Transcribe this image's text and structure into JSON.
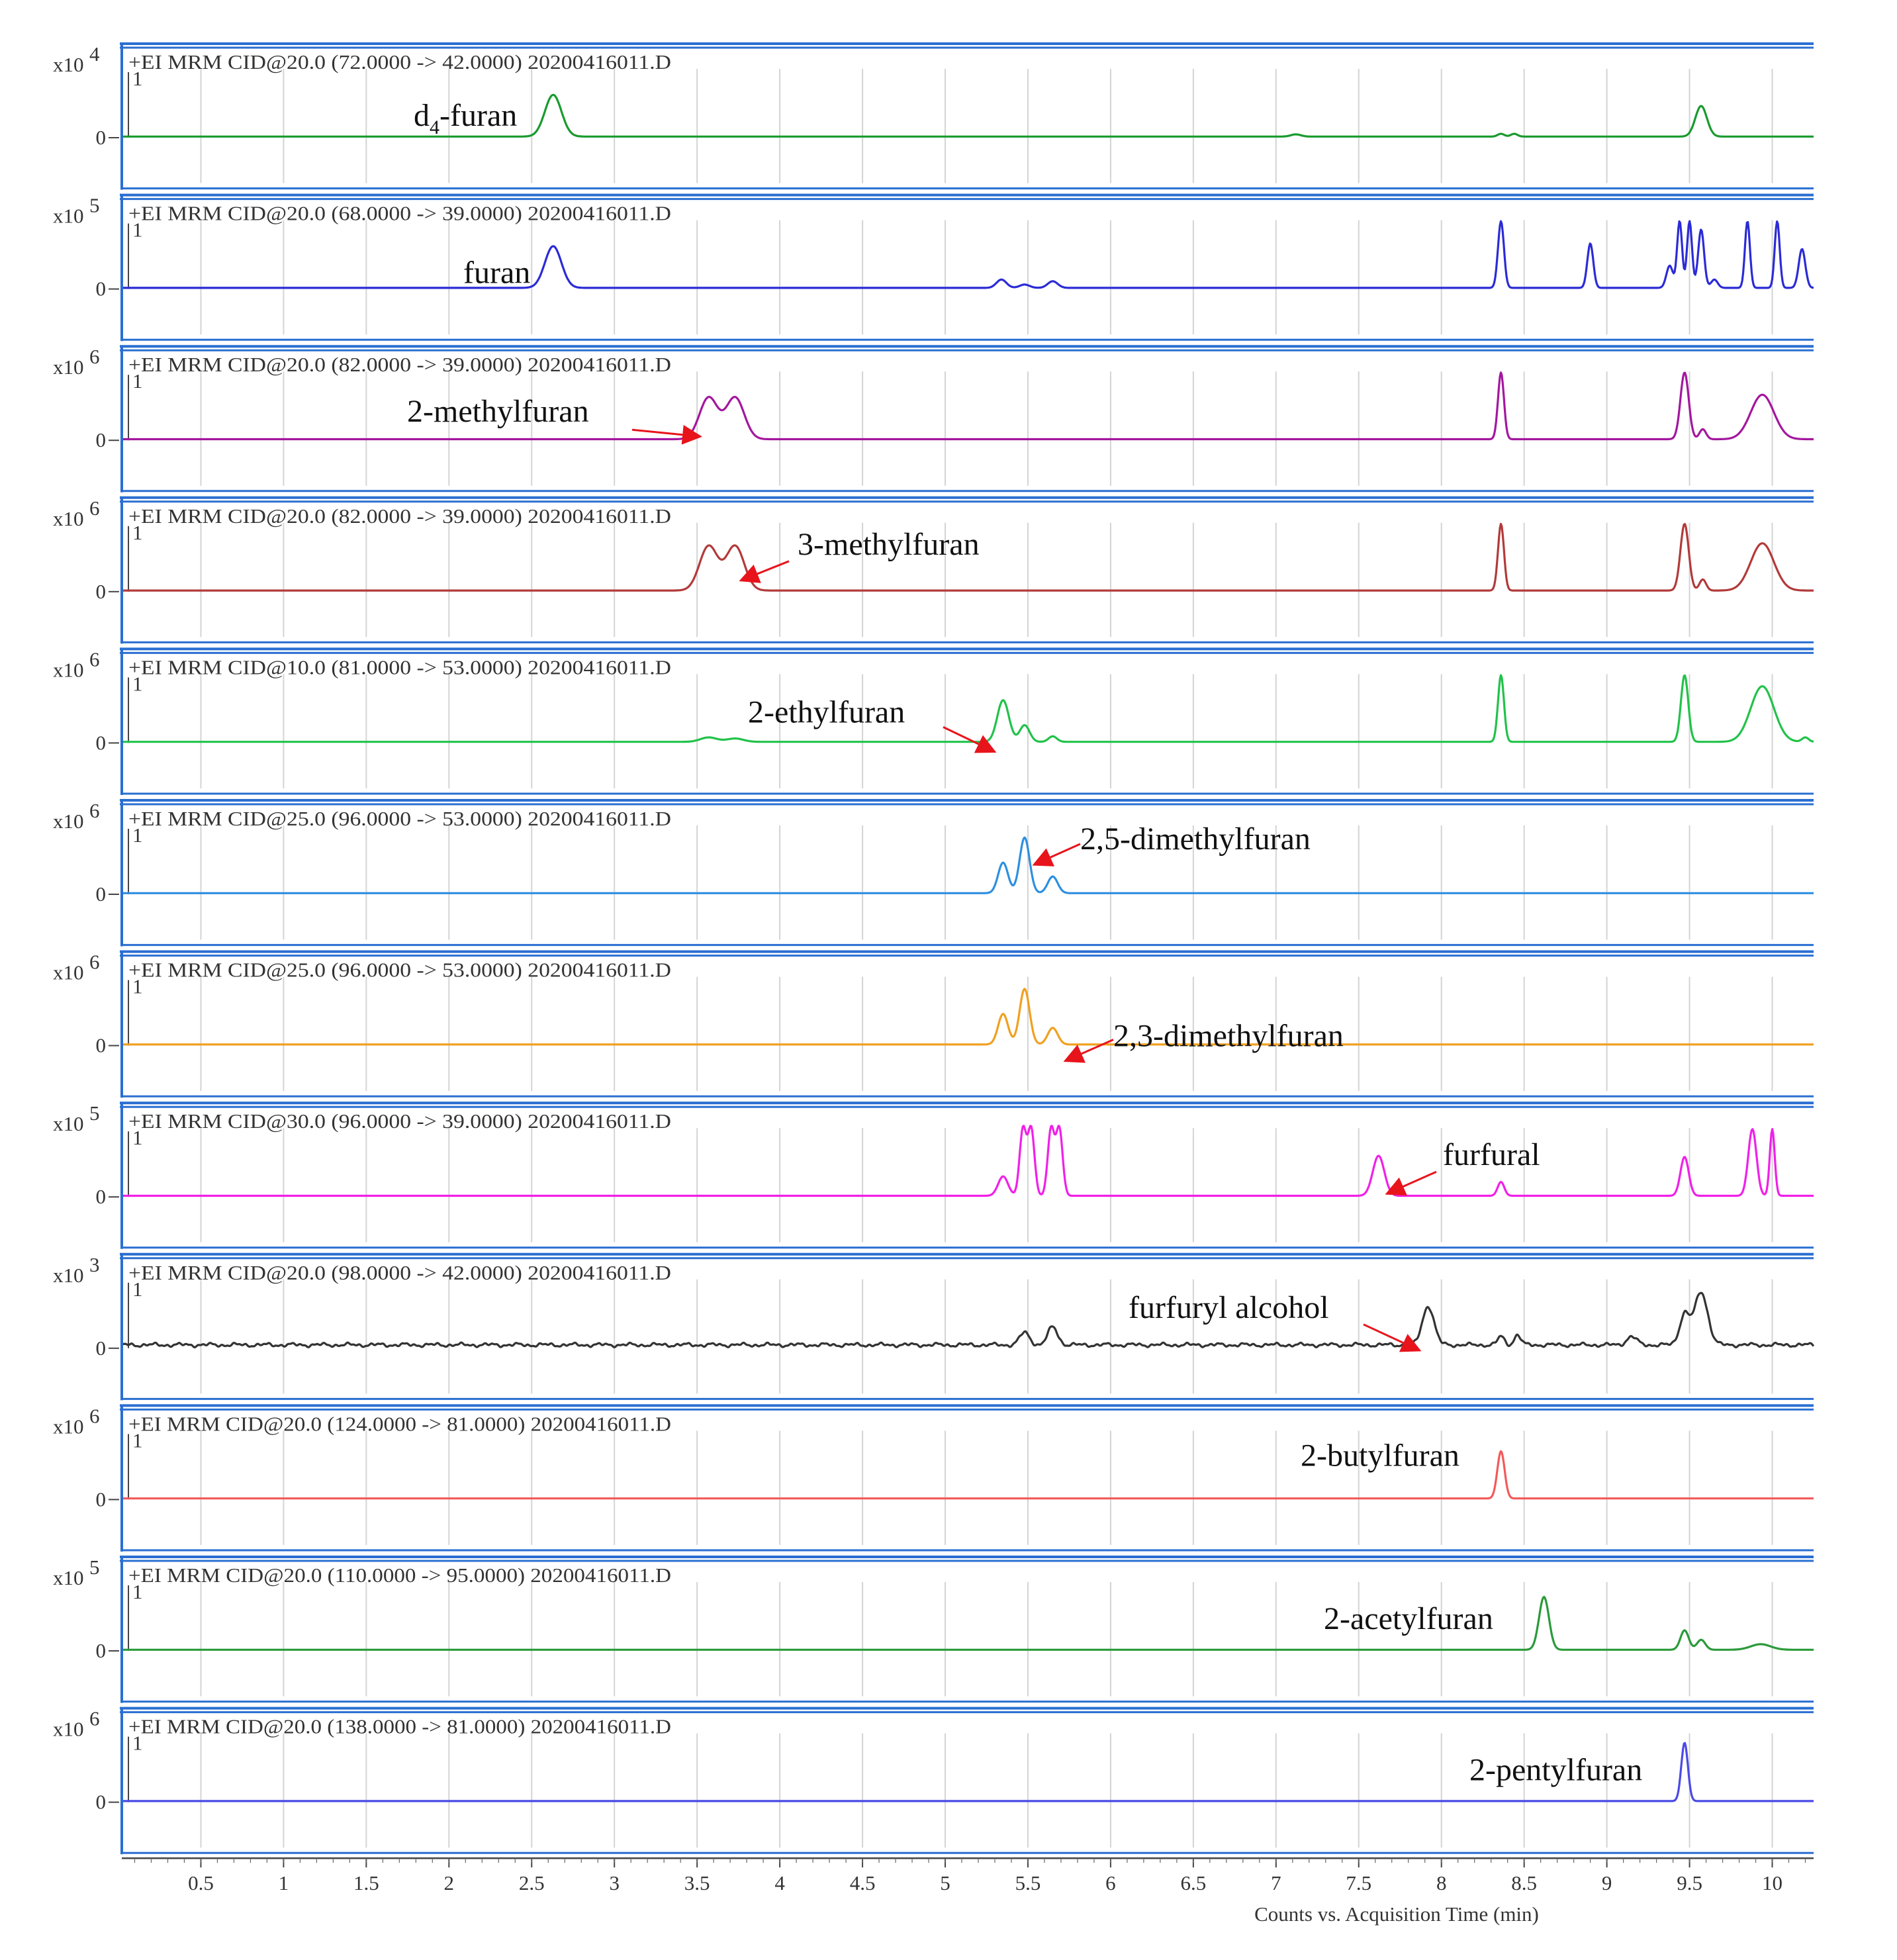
{
  "chart_data": {
    "type": "line",
    "x_axis": {
      "label": "Counts vs. Acquisition Time (min)",
      "range": [
        0.03,
        10.25
      ],
      "ticks": [
        "0.5",
        "1",
        "1.5",
        "2",
        "2.5",
        "3",
        "3.5",
        "4",
        "4.5",
        "5",
        "5.5",
        "6",
        "6.5",
        "7",
        "7.5",
        "8",
        "8.5",
        "9",
        "9.5",
        "10"
      ]
    },
    "panels": [
      {
        "exp": "4",
        "title": "+EI MRM CID@20.0 (72.0000 -> 42.0000) 20200416011.D",
        "color": "#1a9a2e",
        "compound": "d4-furan",
        "label_main": "d",
        "label_sub": "4",
        "label_rest": "-furan",
        "ytick_top": "1",
        "ytick_bottom": "0",
        "baseline": 0.02,
        "noise": 0,
        "peaks": [
          {
            "rt": 2.63,
            "h": 0.75,
            "w": 0.05
          },
          {
            "rt": 7.12,
            "h": 0.04,
            "w": 0.03
          },
          {
            "rt": 8.36,
            "h": 0.05,
            "w": 0.02
          },
          {
            "rt": 8.44,
            "h": 0.05,
            "w": 0.02
          },
          {
            "rt": 9.57,
            "h": 0.55,
            "w": 0.035
          }
        ],
        "arrow": false
      },
      {
        "exp": "5",
        "title": "+EI MRM CID@20.0 (68.0000 -> 39.0000) 20200416011.D",
        "color": "#2b2bd6",
        "compound": "furan",
        "label_main": "furan",
        "label_sub": "",
        "label_rest": "",
        "ytick_top": "1",
        "ytick_bottom": "0",
        "baseline": 0.02,
        "noise": 0,
        "peaks": [
          {
            "rt": 2.63,
            "h": 0.75,
            "w": 0.05
          },
          {
            "rt": 5.34,
            "h": 0.15,
            "w": 0.03
          },
          {
            "rt": 5.48,
            "h": 0.06,
            "w": 0.03
          },
          {
            "rt": 5.65,
            "h": 0.12,
            "w": 0.03
          },
          {
            "rt": 8.36,
            "h": 1.2,
            "w": 0.018
          },
          {
            "rt": 8.9,
            "h": 0.8,
            "w": 0.018
          },
          {
            "rt": 9.38,
            "h": 0.4,
            "w": 0.02
          },
          {
            "rt": 9.44,
            "h": 1.2,
            "w": 0.015
          },
          {
            "rt": 9.5,
            "h": 1.2,
            "w": 0.015
          },
          {
            "rt": 9.57,
            "h": 1.05,
            "w": 0.018
          },
          {
            "rt": 9.65,
            "h": 0.15,
            "w": 0.02
          },
          {
            "rt": 9.85,
            "h": 1.2,
            "w": 0.015
          },
          {
            "rt": 10.03,
            "h": 1.2,
            "w": 0.015
          },
          {
            "rt": 10.18,
            "h": 0.7,
            "w": 0.02
          }
        ],
        "arrow": false
      },
      {
        "exp": "6",
        "title": "+EI MRM CID@20.0 (82.0000 -> 39.0000) 20200416011.D",
        "color": "#a3179e",
        "compound": "2-methylfuran",
        "label_main": "2-methylfuran",
        "label_sub": "",
        "label_rest": "",
        "ytick_top": "1",
        "ytick_bottom": "0",
        "baseline": 0.02,
        "noise": 0,
        "peaks": [
          {
            "rt": 3.57,
            "h": 0.75,
            "w": 0.055
          },
          {
            "rt": 3.73,
            "h": 0.75,
            "w": 0.055
          },
          {
            "rt": 8.36,
            "h": 1.2,
            "w": 0.018
          },
          {
            "rt": 9.47,
            "h": 1.2,
            "w": 0.025
          },
          {
            "rt": 9.58,
            "h": 0.18,
            "w": 0.02
          },
          {
            "rt": 9.94,
            "h": 0.8,
            "w": 0.07
          }
        ],
        "arrow": true
      },
      {
        "exp": "6",
        "title": "+EI MRM CID@20.0 (82.0000 -> 39.0000) 20200416011.D",
        "color": "#b23a3a",
        "compound": "3-methylfuran",
        "label_main": "3-methylfuran",
        "label_sub": "",
        "label_rest": "",
        "ytick_top": "1",
        "ytick_bottom": "0",
        "baseline": 0.02,
        "noise": 0,
        "peaks": [
          {
            "rt": 3.57,
            "h": 0.8,
            "w": 0.055
          },
          {
            "rt": 3.73,
            "h": 0.8,
            "w": 0.055
          },
          {
            "rt": 8.36,
            "h": 1.2,
            "w": 0.018
          },
          {
            "rt": 9.47,
            "h": 1.2,
            "w": 0.025
          },
          {
            "rt": 9.58,
            "h": 0.2,
            "w": 0.02
          },
          {
            "rt": 9.94,
            "h": 0.85,
            "w": 0.07
          }
        ],
        "arrow": true
      },
      {
        "exp": "6",
        "title": "+EI MRM CID@10.0 (81.0000 -> 53.0000) 20200416011.D",
        "color": "#22c24a",
        "compound": "2-ethylfuran",
        "label_main": "2-ethylfuran",
        "label_sub": "",
        "label_rest": "",
        "ytick_top": "1",
        "ytick_bottom": "0",
        "baseline": 0.02,
        "noise": 0,
        "peaks": [
          {
            "rt": 3.57,
            "h": 0.08,
            "w": 0.05
          },
          {
            "rt": 3.73,
            "h": 0.06,
            "w": 0.05
          },
          {
            "rt": 5.35,
            "h": 0.75,
            "w": 0.035
          },
          {
            "rt": 5.48,
            "h": 0.3,
            "w": 0.03
          },
          {
            "rt": 5.65,
            "h": 0.1,
            "w": 0.025
          },
          {
            "rt": 8.36,
            "h": 1.2,
            "w": 0.018
          },
          {
            "rt": 9.47,
            "h": 1.2,
            "w": 0.022
          },
          {
            "rt": 9.94,
            "h": 1.0,
            "w": 0.07
          },
          {
            "rt": 10.2,
            "h": 0.08,
            "w": 0.02
          }
        ],
        "arrow": true
      },
      {
        "exp": "6",
        "title": "+EI MRM CID@25.0 (96.0000 -> 53.0000) 20200416011.D",
        "color": "#2e8fe0",
        "compound": "2,5-dimethylfuran",
        "label_main": "2,5-dimethylfuran",
        "label_sub": "",
        "label_rest": "",
        "ytick_top": "1",
        "ytick_bottom": "0",
        "baseline": 0.02,
        "noise": 0,
        "peaks": [
          {
            "rt": 5.35,
            "h": 0.55,
            "w": 0.03
          },
          {
            "rt": 5.48,
            "h": 1.0,
            "w": 0.03
          },
          {
            "rt": 5.65,
            "h": 0.3,
            "w": 0.03
          }
        ],
        "arrow": true
      },
      {
        "exp": "6",
        "title": "+EI MRM CID@25.0 (96.0000 -> 53.0000) 20200416011.D",
        "color": "#f0a020",
        "compound": "2,3-dimethylfuran",
        "label_main": "2,3-dimethylfuran",
        "label_sub": "",
        "label_rest": "",
        "ytick_top": "1",
        "ytick_bottom": "0",
        "baseline": 0.02,
        "noise": 0,
        "peaks": [
          {
            "rt": 5.35,
            "h": 0.55,
            "w": 0.03
          },
          {
            "rt": 5.48,
            "h": 1.0,
            "w": 0.03
          },
          {
            "rt": 5.65,
            "h": 0.3,
            "w": 0.03
          }
        ],
        "arrow": true
      },
      {
        "exp": "5",
        "title": "+EI MRM CID@30.0 (96.0000 -> 39.0000) 20200416011.D",
        "color": "#f020e8",
        "compound": "furfural",
        "label_main": "furfural",
        "label_sub": "",
        "label_rest": "",
        "ytick_top": "1",
        "ytick_bottom": "0",
        "baseline": 0.02,
        "noise": 0,
        "peaks": [
          {
            "rt": 5.35,
            "h": 0.35,
            "w": 0.03
          },
          {
            "rt": 5.47,
            "h": 1.2,
            "w": 0.02
          },
          {
            "rt": 5.52,
            "h": 1.2,
            "w": 0.02
          },
          {
            "rt": 5.64,
            "h": 1.2,
            "w": 0.02
          },
          {
            "rt": 5.69,
            "h": 1.2,
            "w": 0.02
          },
          {
            "rt": 7.62,
            "h": 0.72,
            "w": 0.035
          },
          {
            "rt": 8.36,
            "h": 0.25,
            "w": 0.02
          },
          {
            "rt": 9.47,
            "h": 0.7,
            "w": 0.025
          },
          {
            "rt": 9.88,
            "h": 1.2,
            "w": 0.025
          },
          {
            "rt": 10.0,
            "h": 1.2,
            "w": 0.015
          }
        ],
        "arrow": true
      },
      {
        "exp": "3",
        "title": "+EI MRM CID@20.0 (98.0000 -> 42.0000) 20200416011.D",
        "color": "#333333",
        "compound": "furfuryl alcohol",
        "label_main": "furfuryl alcohol",
        "label_sub": "",
        "label_rest": "",
        "ytick_top": "1",
        "ytick_bottom": "0",
        "baseline": 0.06,
        "noise": 0.04,
        "peaks": [
          {
            "rt": 5.48,
            "h": 0.22,
            "w": 0.03
          },
          {
            "rt": 5.65,
            "h": 0.32,
            "w": 0.03
          },
          {
            "rt": 7.92,
            "h": 0.7,
            "w": 0.035
          },
          {
            "rt": 8.36,
            "h": 0.15,
            "w": 0.02
          },
          {
            "rt": 8.46,
            "h": 0.18,
            "w": 0.02
          },
          {
            "rt": 9.15,
            "h": 0.15,
            "w": 0.03
          },
          {
            "rt": 9.47,
            "h": 0.55,
            "w": 0.03
          },
          {
            "rt": 9.57,
            "h": 0.95,
            "w": 0.04
          }
        ],
        "arrow": true
      },
      {
        "exp": "6",
        "title": "+EI MRM CID@20.0 (124.0000 -> 81.0000) 20200416011.D",
        "color": "#f25a5a",
        "compound": "2-butylfuran",
        "label_main": "2-butylfuran",
        "label_sub": "",
        "label_rest": "",
        "ytick_top": "1",
        "ytick_bottom": "0",
        "baseline": 0.02,
        "noise": 0,
        "peaks": [
          {
            "rt": 8.36,
            "h": 0.85,
            "w": 0.022
          }
        ],
        "arrow": false
      },
      {
        "exp": "5",
        "title": "+EI MRM CID@20.0 (110.0000 -> 95.0000) 20200416011.D",
        "color": "#2a9a3a",
        "compound": "2-acetylfuran",
        "label_main": "2-acetylfuran",
        "label_sub": "",
        "label_rest": "",
        "ytick_top": "1",
        "ytick_bottom": "0",
        "baseline": 0.02,
        "noise": 0,
        "peaks": [
          {
            "rt": 8.62,
            "h": 0.95,
            "w": 0.03
          },
          {
            "rt": 9.47,
            "h": 0.35,
            "w": 0.025
          },
          {
            "rt": 9.57,
            "h": 0.18,
            "w": 0.025
          },
          {
            "rt": 9.93,
            "h": 0.1,
            "w": 0.06
          }
        ],
        "arrow": false
      },
      {
        "exp": "6",
        "title": "+EI MRM CID@20.0 (138.0000 -> 81.0000) 20200416011.D",
        "color": "#4a4ae6",
        "compound": "2-pentylfuran",
        "label_main": "2-pentylfuran",
        "label_sub": "",
        "label_rest": "",
        "ytick_top": "1",
        "ytick_bottom": "0",
        "baseline": 0.02,
        "noise": 0,
        "peaks": [
          {
            "rt": 9.47,
            "h": 1.05,
            "w": 0.02
          }
        ],
        "arrow": false
      }
    ]
  }
}
